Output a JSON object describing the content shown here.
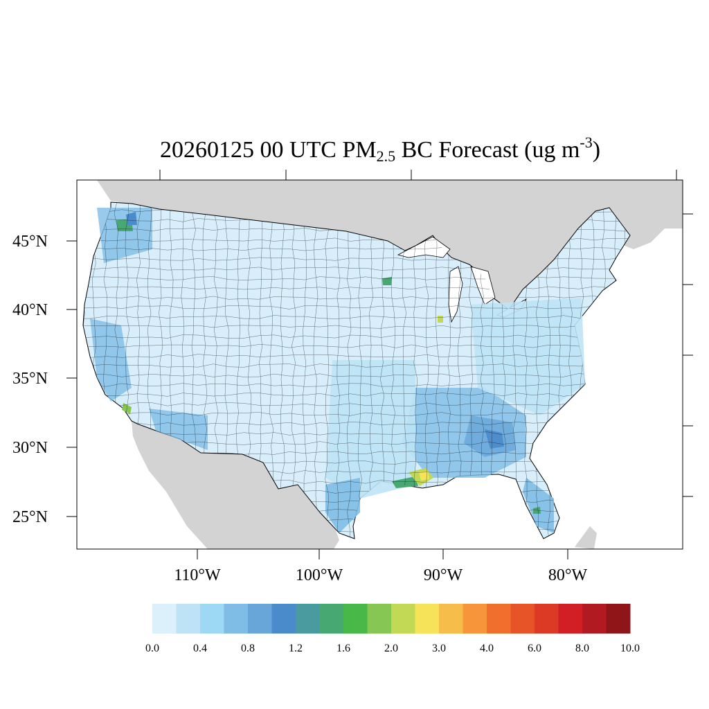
{
  "title": {
    "prefix": "20260125 00 UTC PM",
    "sub": "2.5",
    "middle": " BC Forecast (ug m",
    "sup": "-3",
    "suffix": ")"
  },
  "map": {
    "land_color": "#d3d3d3",
    "water_color": "#ffffff",
    "border_color": "#000000",
    "lat_labels": [
      "45°N",
      "40°N",
      "35°N",
      "30°N",
      "25°N"
    ],
    "lon_labels": [
      "110°W",
      "100°W",
      "90°W",
      "80°W"
    ]
  },
  "colorbar": {
    "colors": [
      "#dbf0fa",
      "#bee3f6",
      "#9dd8f4",
      "#7fbde6",
      "#68a6da",
      "#4a8bcb",
      "#4a9ba0",
      "#48a872",
      "#48b848",
      "#86c652",
      "#c2d955",
      "#f6e359",
      "#f7bd4a",
      "#f7953a",
      "#f16f2c",
      "#e65428",
      "#dc3a24",
      "#d21f26",
      "#b01a20",
      "#8f1519"
    ],
    "labels": [
      "0.0",
      "0.4",
      "0.8",
      "1.2",
      "1.6",
      "2.0",
      "3.0",
      "4.0",
      "6.0",
      "8.0",
      "10.0"
    ]
  }
}
